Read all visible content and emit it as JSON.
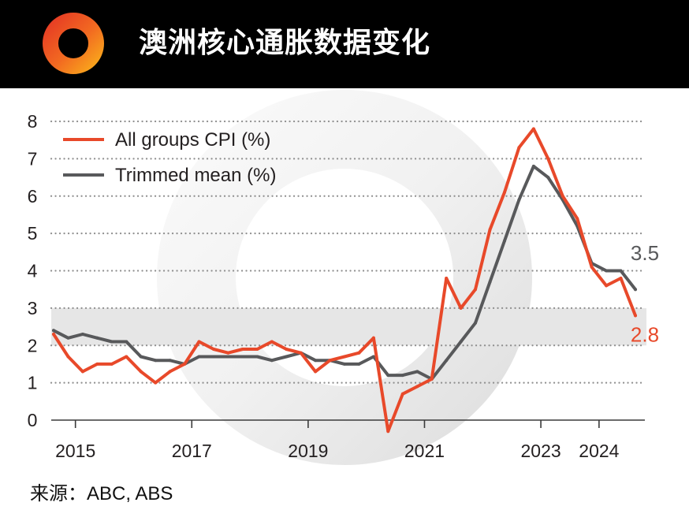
{
  "header": {
    "logo_icon": "ring-logo"
  },
  "footer": {
    "source": "来源：ABC, ABS"
  },
  "colors": {
    "header_bg": "#000000",
    "target_band": "#e6e6e6"
  },
  "chart_data": {
    "type": "line",
    "title": "澳洲核心通胀数据变化",
    "x": [
      "2014-09",
      "2014-12",
      "2015-03",
      "2015-06",
      "2015-09",
      "2015-12",
      "2016-03",
      "2016-06",
      "2016-09",
      "2016-12",
      "2017-03",
      "2017-06",
      "2017-09",
      "2017-12",
      "2018-03",
      "2018-06",
      "2018-09",
      "2018-12",
      "2019-03",
      "2019-06",
      "2019-09",
      "2019-12",
      "2020-03",
      "2020-06",
      "2020-09",
      "2020-12",
      "2021-03",
      "2021-06",
      "2021-09",
      "2021-12",
      "2022-03",
      "2022-06",
      "2022-09",
      "2022-12",
      "2023-03",
      "2023-06",
      "2023-09",
      "2023-12",
      "2024-03",
      "2024-06",
      "2024-09"
    ],
    "x_ticks": [
      "2015",
      "2017",
      "2019",
      "2021",
      "2023",
      "2024"
    ],
    "ylim": [
      0,
      8
    ],
    "y_ticks": [
      0,
      1,
      2,
      3,
      4,
      5,
      6,
      7,
      8
    ],
    "grid": true,
    "legend": "top-left",
    "shaded_band": [
      2,
      3
    ],
    "series": [
      {
        "name": "All groups CPI (%)",
        "color": "#e8492a",
        "values": [
          2.3,
          1.7,
          1.3,
          1.5,
          1.5,
          1.7,
          1.3,
          1.0,
          1.3,
          1.5,
          2.1,
          1.9,
          1.8,
          1.9,
          1.9,
          2.1,
          1.9,
          1.8,
          1.3,
          1.6,
          1.7,
          1.8,
          2.2,
          -0.3,
          0.7,
          0.9,
          1.1,
          3.8,
          3.0,
          3.5,
          5.1,
          6.1,
          7.3,
          7.8,
          7.0,
          6.0,
          5.4,
          4.1,
          3.6,
          3.8,
          2.8
        ],
        "end_label": "2.8"
      },
      {
        "name": "Trimmed mean (%)",
        "color": "#58595b",
        "values": [
          2.4,
          2.2,
          2.3,
          2.2,
          2.1,
          2.1,
          1.7,
          1.6,
          1.6,
          1.5,
          1.7,
          1.7,
          1.7,
          1.7,
          1.7,
          1.6,
          1.7,
          1.8,
          1.6,
          1.6,
          1.5,
          1.5,
          1.7,
          1.2,
          1.2,
          1.3,
          1.1,
          1.6,
          2.1,
          2.6,
          3.7,
          4.8,
          5.9,
          6.8,
          6.5,
          5.9,
          5.2,
          4.2,
          4.0,
          4.0,
          3.5
        ],
        "end_label": "3.5"
      }
    ]
  }
}
